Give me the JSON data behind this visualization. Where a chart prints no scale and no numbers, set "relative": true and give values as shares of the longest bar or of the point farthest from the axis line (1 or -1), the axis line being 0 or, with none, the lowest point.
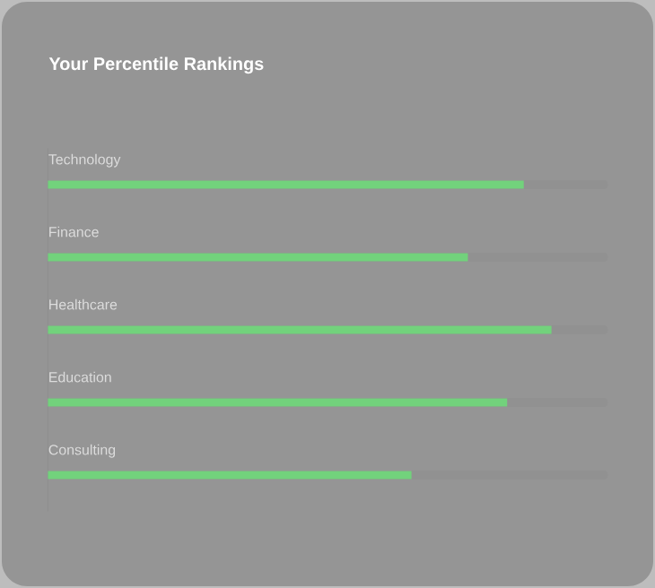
{
  "chart_data": {
    "type": "bar",
    "orientation": "horizontal",
    "relative": true,
    "title": "Your Percentile Rankings",
    "categories": [
      "Technology",
      "Finance",
      "Healthcare",
      "Education",
      "Consulting"
    ],
    "values": [
      0.945,
      0.834,
      1,
      0.912,
      0.722
    ],
    "color": "#72d27c"
  }
}
